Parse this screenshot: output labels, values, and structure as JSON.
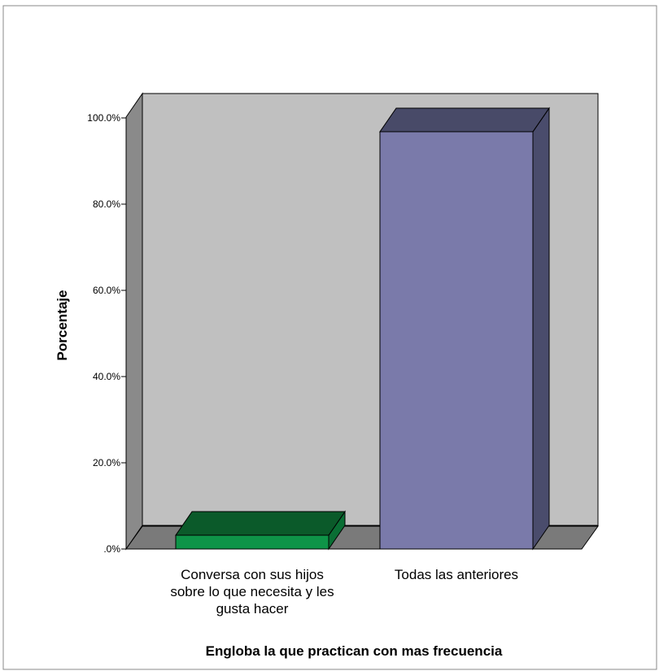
{
  "chart_data": {
    "type": "bar",
    "categories": [
      "Conversa con sus hijos sobre lo que necesita y les gusta hacer",
      "Todas las anteriores"
    ],
    "category_label_lines": [
      [
        "Conversa con sus hijos",
        "sobre lo que necesita y les",
        "gusta hacer"
      ],
      [
        "Todas las anteriores"
      ]
    ],
    "values": [
      3.2,
      96.8
    ],
    "bar_colors": [
      "#0e9448",
      "#7a7aaa"
    ],
    "bar_top_colors": [
      "#0b5a2a",
      "#484a68"
    ],
    "bar_side_colors": [
      "#0a6e34",
      "#4a4c6c"
    ],
    "ylabel": "Porcentaje",
    "xlabel": "Engloba la que practican con mas frecuencia",
    "yticks": [
      0,
      20,
      40,
      60,
      80,
      100
    ],
    "ytick_labels": [
      ".0%",
      "20.0%",
      "40.0%",
      "60.0%",
      "80.0%",
      "100.0%"
    ],
    "ylim": [
      0,
      100
    ],
    "grid": false,
    "three_d": true,
    "colors": {
      "wall": "#c0c0c0",
      "floor": "#7a7a7a",
      "left_wall": "#8a8a8a"
    }
  }
}
